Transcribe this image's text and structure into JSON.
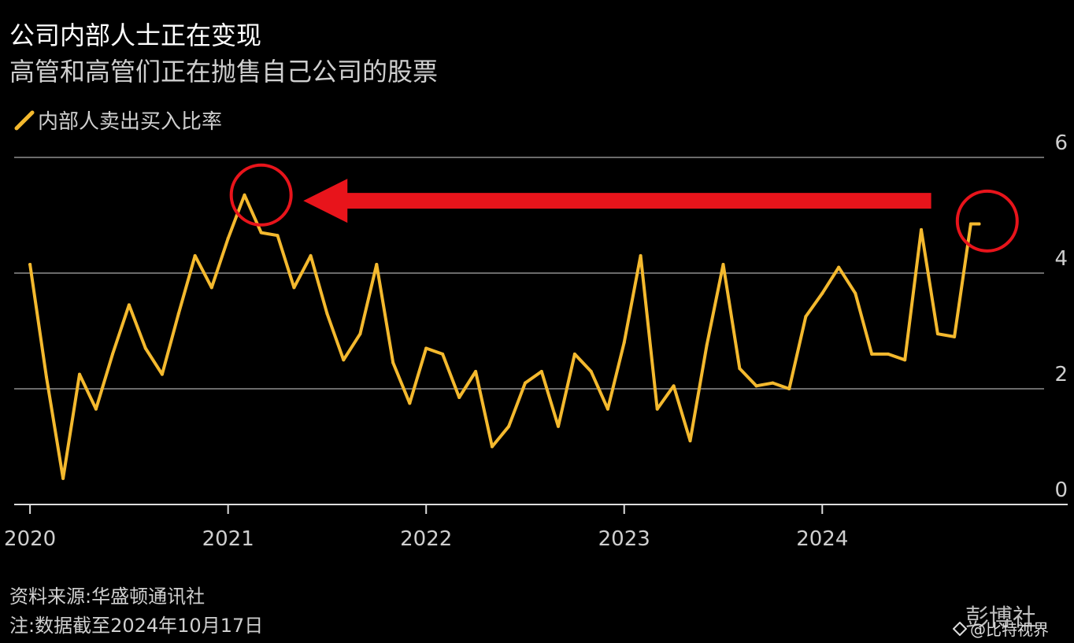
{
  "header": {
    "title": "公司内部人士正在变现",
    "subtitle": "高管和高管们正在抛售自己公司的股票",
    "legend_label": "内部人卖出买入比率"
  },
  "footer": {
    "source": "资料来源:华盛顿通讯社",
    "note": "注:数据截至2024年10月17日",
    "brand": "彭博社",
    "watermark": "@比特视界"
  },
  "colors": {
    "background": "#000000",
    "line": "#f4b92e",
    "annotation": "#e8141b",
    "grid": "#6b6b6b",
    "text": "#cfcfcf"
  },
  "chart_data": {
    "type": "line",
    "title": "公司内部人士正在变现",
    "subtitle": "高管和高管们正在抛售自己公司的股票",
    "series": [
      {
        "name": "内部人卖出买入比率",
        "x": [
          2020.0,
          2020.083,
          2020.167,
          2020.25,
          2020.333,
          2020.417,
          2020.5,
          2020.583,
          2020.667,
          2020.75,
          2020.833,
          2020.917,
          2021.0,
          2021.083,
          2021.167,
          2021.25,
          2021.333,
          2021.417,
          2021.5,
          2021.583,
          2021.667,
          2021.75,
          2021.833,
          2021.917,
          2022.0,
          2022.083,
          2022.167,
          2022.25,
          2022.333,
          2022.417,
          2022.5,
          2022.583,
          2022.667,
          2022.75,
          2022.833,
          2022.917,
          2023.0,
          2023.083,
          2023.167,
          2023.25,
          2023.333,
          2023.417,
          2023.5,
          2023.583,
          2023.667,
          2023.75,
          2023.833,
          2023.917,
          2024.0,
          2024.083,
          2024.167,
          2024.25,
          2024.333,
          2024.417,
          2024.5,
          2024.583,
          2024.667,
          2024.75,
          2024.792
        ],
        "values": [
          4.15,
          2.2,
          0.45,
          2.25,
          1.65,
          2.6,
          3.45,
          2.7,
          2.25,
          3.3,
          4.3,
          3.75,
          4.6,
          5.35,
          4.7,
          4.65,
          3.75,
          4.3,
          3.3,
          2.5,
          2.95,
          4.15,
          2.45,
          1.75,
          2.7,
          2.6,
          1.85,
          2.3,
          1.0,
          1.35,
          2.1,
          2.3,
          1.35,
          2.6,
          2.3,
          1.65,
          2.8,
          4.3,
          1.65,
          2.05,
          1.1,
          2.75,
          4.15,
          2.35,
          2.05,
          2.1,
          2.0,
          3.25,
          3.65,
          4.1,
          3.65,
          2.6,
          2.6,
          2.5,
          4.75,
          2.95,
          2.9,
          4.85,
          4.85
        ]
      }
    ],
    "xlim": [
      2019.92,
      2025.12
    ],
    "ylim": [
      0,
      6
    ],
    "x_ticks": [
      2020,
      2021,
      2022,
      2023,
      2024
    ],
    "x_tick_labels": [
      "2020",
      "2021",
      "2022",
      "2023",
      "2024"
    ],
    "y_ticks": [
      0,
      2,
      4,
      6
    ],
    "y_tick_labels": [
      "0",
      "2",
      "4",
      "6"
    ],
    "xlabel": "",
    "ylabel": "",
    "grid": true,
    "legend": "top-left",
    "annotations": [
      {
        "type": "circle",
        "at": [
          2021.167,
          5.35
        ]
      },
      {
        "type": "circle",
        "at": [
          2024.833,
          4.9
        ]
      },
      {
        "type": "arrow",
        "from": [
          2024.55,
          5.25
        ],
        "to": [
          2021.38,
          5.25
        ]
      }
    ]
  }
}
